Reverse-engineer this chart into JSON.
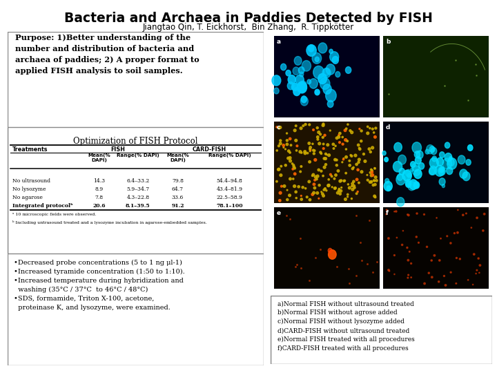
{
  "title": "Bacteria and Archaea in Paddies Detected by FISH",
  "subtitle": "Jiangtao Qin, T. Eickhorst,  Bin Zhang,  R. Tippkötter",
  "purpose_text": "Purpose: 1)Better understanding of the\nnumber and distribution of bacteria and\narchaea of paddies; 2) A proper format to\napplied FISH analysis to soil samples.",
  "table_title": "Optimization of FISH Protocol",
  "table_rows": [
    [
      "No ultrasound",
      "14.3",
      "6.4–33.2",
      "79.8",
      "54.4–94.8"
    ],
    [
      "No lysozyme",
      "8.9",
      "5.9–34.7",
      "64.7",
      "43.4–81.9"
    ],
    [
      "No agarose",
      "7.8",
      "4.3–22.8",
      "33.6",
      "22.5–58.9"
    ],
    [
      "Integrated protocolᵇ",
      "20.6",
      "8.1–39.5",
      "91.2",
      "78.1–100"
    ]
  ],
  "table_footnote_a": "ᵃ 10 microscopic fields were observed.",
  "table_footnote_b": "ᵇ Including untrasound treated and a lysozyme incubation in agarose-embedded samples.",
  "bullet_text": "•Decreased probe concentrations (5 to 1 ng μl-1)\n•Increased tyramide concentration (1:50 to 1:10).\n•Increased temperature during hybridization and\n  washing (35°C / 37°C  to 46°C / 48°C)\n•SDS, formamide, Triton X-100, acetone,\n  proteinase K, and lysozyme, were examined.",
  "caption_text": "a)Normal FISH without ultrasound treated\nb)Normal FISH without agrose added\nc)Normal FISH without lysozyme added\nd)CARD-FISH without ultrasound treated\ne)Normal FISH treated with all procedures\nf)CARD-FISH treated with all procedures",
  "img_bg": [
    "#00001a",
    "#0d2200",
    "#1e1200",
    "#000510",
    "#080500",
    "#060300"
  ],
  "img_particle_color": [
    "#00ccff",
    "#77bb33",
    "#ccaa00",
    "#00ccee",
    "#cc4400",
    "#aa3300"
  ],
  "img_particle_density": [
    40,
    3,
    80,
    60,
    10,
    20
  ],
  "img_labels": [
    "a",
    "b",
    "c",
    "d",
    "e",
    "f"
  ]
}
